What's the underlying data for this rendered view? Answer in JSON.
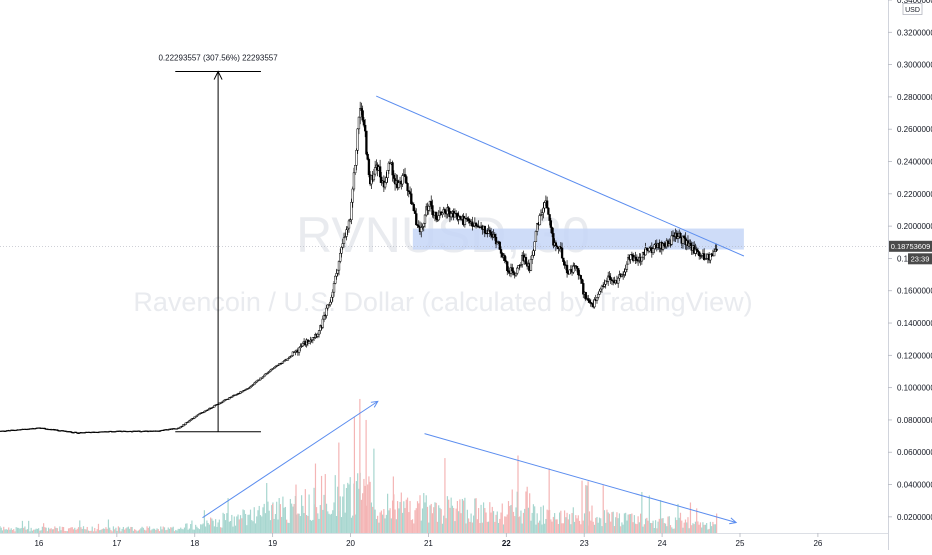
{
  "chart_data": {
    "type": "candlestick",
    "symbol_watermark": "RVNUSD, 30",
    "description_watermark": "Ravencoin / U.S. Dollar (calculated by TradingView)",
    "currency": "USD",
    "y_axis": {
      "min": 0.01,
      "max": 0.34,
      "side": "right",
      "ticks": [
        0.34,
        0.32,
        0.3,
        0.28,
        0.26,
        0.24,
        0.22,
        0.2,
        0.18,
        0.16,
        0.14,
        0.12,
        0.1,
        0.08,
        0.06,
        0.04,
        0.02
      ],
      "tick_labels": [
        "0.34000000",
        "0.32000000",
        "0.30000000",
        "0.28000000",
        "0.26000000",
        "0.24000000",
        "0.22000000",
        "0.20000000",
        "0.180",
        "0.16000000",
        "0.14000000",
        "0.12000000",
        "0.10000000",
        "0.08000000",
        "0.06000000",
        "0.04000000",
        "0.02000000"
      ]
    },
    "x_axis": {
      "min": 15.5,
      "max": 26.9,
      "ticks": [
        16,
        17,
        18,
        19,
        20,
        21,
        22,
        23,
        24,
        25,
        26
      ],
      "tick_labels": [
        "16",
        "17",
        "18",
        "19",
        "20",
        "21",
        "22",
        "23",
        "24",
        "25",
        "26"
      ],
      "bold_tick": "22"
    },
    "last_price": {
      "label": "0.18753609",
      "value": 0.1875,
      "countdown": "23:39"
    },
    "measure_annotation": {
      "label": "0.22293557 (307.56%) 22293557",
      "x": 18.3,
      "from": 0.0727,
      "to": 0.2957,
      "bar_half_width": 0.55
    },
    "resistance_zone": {
      "x0": 20.8,
      "x1": 25.05,
      "y0": 0.1855,
      "y1": 0.1985,
      "color": "#c5d6f7"
    },
    "trendlines": [
      {
        "name": "price-descending-trendline",
        "x0": 20.33,
        "y0": 0.2805,
        "x1": 25.05,
        "y1": 0.1815,
        "arrow": false
      },
      {
        "name": "volume-rising-arrow",
        "x0": 18.1,
        "y0": 0.0195,
        "x1": 20.35,
        "y1": 0.0915,
        "arrow": true
      },
      {
        "name": "volume-falling-arrow",
        "x0": 20.95,
        "y0": 0.0715,
        "x1": 24.95,
        "y1": 0.0165,
        "arrow": true
      }
    ],
    "price_path": {
      "time": [
        15.5,
        16.0,
        16.5,
        17.0,
        17.5,
        17.8,
        18.0,
        18.3,
        18.5,
        18.7,
        19.0,
        19.2,
        19.4,
        19.6,
        19.75,
        19.88,
        20.0,
        20.07,
        20.12,
        20.18,
        20.25,
        20.33,
        20.42,
        20.5,
        20.6,
        20.7,
        20.8,
        20.9,
        21.0,
        21.1,
        21.2,
        21.4,
        21.6,
        21.8,
        21.9,
        22.0,
        22.1,
        22.2,
        22.3,
        22.4,
        22.5,
        22.6,
        22.7,
        22.8,
        22.9,
        23.0,
        23.1,
        23.2,
        23.3,
        23.4,
        23.5,
        23.6,
        23.7,
        23.8,
        24.0,
        24.2,
        24.35,
        24.5,
        24.6,
        24.7
      ],
      "close": [
        0.073,
        0.075,
        0.072,
        0.073,
        0.073,
        0.075,
        0.082,
        0.09,
        0.095,
        0.1,
        0.112,
        0.118,
        0.127,
        0.135,
        0.155,
        0.185,
        0.205,
        0.245,
        0.275,
        0.26,
        0.225,
        0.24,
        0.225,
        0.24,
        0.225,
        0.23,
        0.21,
        0.195,
        0.215,
        0.205,
        0.21,
        0.205,
        0.2,
        0.195,
        0.19,
        0.175,
        0.17,
        0.18,
        0.175,
        0.2,
        0.215,
        0.19,
        0.185,
        0.17,
        0.175,
        0.158,
        0.15,
        0.158,
        0.168,
        0.165,
        0.172,
        0.182,
        0.178,
        0.185,
        0.188,
        0.194,
        0.188,
        0.182,
        0.18,
        0.187
      ]
    },
    "volume_highlights": [
      {
        "x": 19.0,
        "v": 0.018
      },
      {
        "x": 19.3,
        "v": 0.03
      },
      {
        "x": 19.55,
        "v": 0.043
      },
      {
        "x": 19.85,
        "v": 0.056
      },
      {
        "x": 20.05,
        "v": 0.072
      },
      {
        "x": 20.12,
        "v": 0.083
      },
      {
        "x": 20.2,
        "v": 0.07
      },
      {
        "x": 20.55,
        "v": 0.035
      },
      {
        "x": 22.15,
        "v": 0.048
      },
      {
        "x": 22.55,
        "v": 0.04
      },
      {
        "x": 23.05,
        "v": 0.032
      }
    ]
  }
}
